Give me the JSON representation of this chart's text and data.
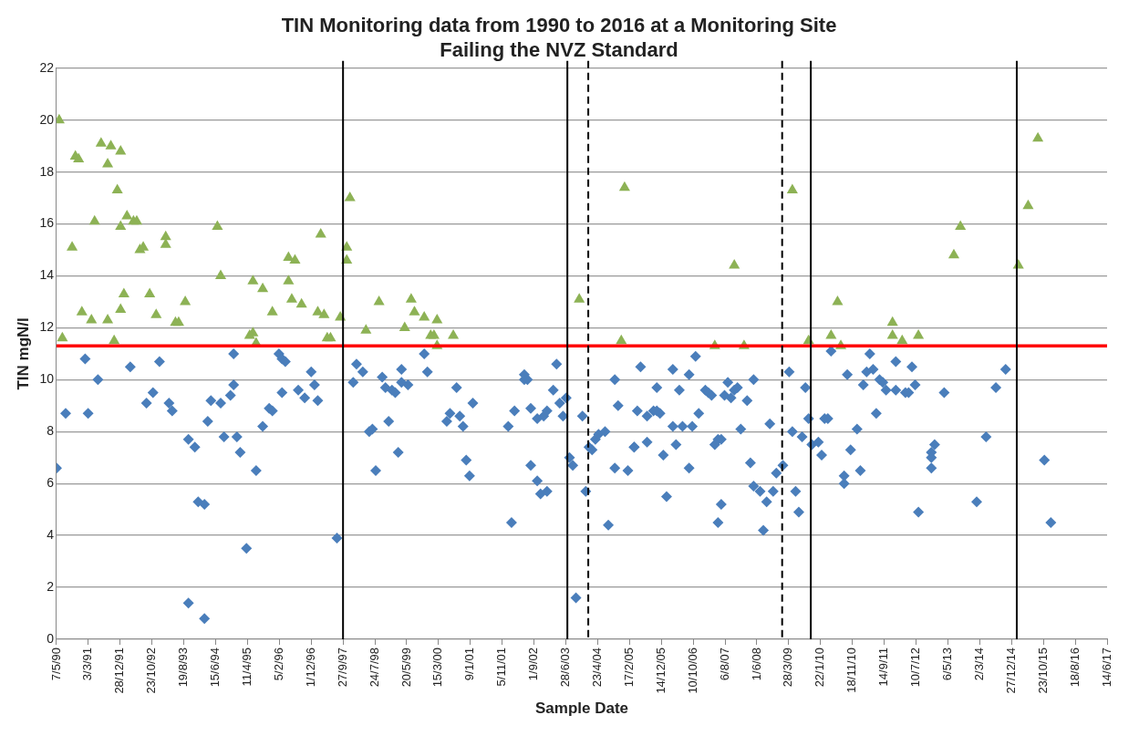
{
  "chart_data": {
    "type": "scatter",
    "title": "TIN Monitoring data from 1990 to 2016 at a Monitoring Site\nFailing the NVZ Standard",
    "xlabel": "Sample Date",
    "ylabel": "TIN mgN/l",
    "grid": "y",
    "legend": false,
    "xlim": [
      "1990-05-07",
      "2017-06-14"
    ],
    "xticks": [
      {
        "value": "1990-05-07",
        "label": "7/5/90"
      },
      {
        "value": "1991-03-03",
        "label": "3/3/91"
      },
      {
        "value": "1991-12-28",
        "label": "28/12/91"
      },
      {
        "value": "1992-10-23",
        "label": "23/10/92"
      },
      {
        "value": "1993-08-19",
        "label": "19/8/93"
      },
      {
        "value": "1994-06-15",
        "label": "15/6/94"
      },
      {
        "value": "1995-04-11",
        "label": "11/4/95"
      },
      {
        "value": "1996-02-05",
        "label": "5/2/96"
      },
      {
        "value": "1996-12-01",
        "label": "1/12/96"
      },
      {
        "value": "1997-09-27",
        "label": "27/9/97"
      },
      {
        "value": "1998-07-24",
        "label": "24/7/98"
      },
      {
        "value": "1999-05-20",
        "label": "20/5/99"
      },
      {
        "value": "2000-03-15",
        "label": "15/3/00"
      },
      {
        "value": "2001-01-09",
        "label": "9/1/01"
      },
      {
        "value": "2001-11-05",
        "label": "5/11/01"
      },
      {
        "value": "2002-09-01",
        "label": "1/9/02"
      },
      {
        "value": "2003-06-28",
        "label": "28/6/03"
      },
      {
        "value": "2004-04-23",
        "label": "23/4/04"
      },
      {
        "value": "2005-02-17",
        "label": "17/2/05"
      },
      {
        "value": "2005-12-14",
        "label": "14/12/05"
      },
      {
        "value": "2006-10-10",
        "label": "10/10/06"
      },
      {
        "value": "2007-08-06",
        "label": "6/8/07"
      },
      {
        "value": "2008-06-01",
        "label": "1/6/08"
      },
      {
        "value": "2009-03-28",
        "label": "28/3/09"
      },
      {
        "value": "2010-01-22",
        "label": "22/1/10"
      },
      {
        "value": "2010-11-18",
        "label": "18/11/10"
      },
      {
        "value": "2011-09-14",
        "label": "14/9/11"
      },
      {
        "value": "2012-07-10",
        "label": "10/7/12"
      },
      {
        "value": "2013-05-06",
        "label": "6/5/13"
      },
      {
        "value": "2014-03-02",
        "label": "2/3/14"
      },
      {
        "value": "2014-12-27",
        "label": "27/12/14"
      },
      {
        "value": "2015-10-23",
        "label": "23/10/15"
      },
      {
        "value": "2016-08-18",
        "label": "18/8/16"
      },
      {
        "value": "2017-06-14",
        "label": "14/6/17"
      }
    ],
    "ylim": [
      0,
      22
    ],
    "yticks": [
      0,
      2,
      4,
      6,
      8,
      10,
      12,
      14,
      16,
      18,
      20,
      22
    ],
    "ref_lines": [
      {
        "axis": "y",
        "value": 11.3,
        "color": "#ff0000",
        "line_style": "solid"
      },
      {
        "axis": "x",
        "value": "1997-09-27",
        "color": "#000000",
        "line_style": "solid"
      },
      {
        "axis": "x",
        "value": "2003-07-12",
        "color": "#000000",
        "line_style": "solid"
      },
      {
        "axis": "x",
        "value": "2004-01-25",
        "color": "#000000",
        "line_style": "dashed"
      },
      {
        "axis": "x",
        "value": "2009-01-25",
        "color": "#000000",
        "line_style": "dashed"
      },
      {
        "axis": "x",
        "value": "2009-10-22",
        "color": "#000000",
        "line_style": "solid"
      },
      {
        "axis": "x",
        "value": "2015-02-14",
        "color": "#000000",
        "line_style": "solid"
      }
    ],
    "series": [
      {
        "type": "scatter",
        "marker": "triangle",
        "color": "#8db255",
        "x": [
          "1990-06",
          "1990-07",
          "1990-10",
          "1990-11",
          "1990-12",
          "1991-01",
          "1991-04",
          "1991-05",
          "1991-07",
          "1991-09",
          "1991-09",
          "1991-10",
          "1991-11",
          "1991-12",
          "1992-01",
          "1992-01",
          "1992-01",
          "1992-02",
          "1992-03",
          "1992-05",
          "1992-06",
          "1992-07",
          "1992-08",
          "1992-10",
          "1992-12",
          "1993-03",
          "1993-03",
          "1993-06",
          "1993-07",
          "1993-09",
          "1994-07",
          "1994-08",
          "1995-05",
          "1995-06",
          "1995-07",
          "1995-06",
          "1995-09",
          "1995-12",
          "1996-05",
          "1996-06",
          "1996-05",
          "1996-07",
          "1996-09",
          "1997-03",
          "1997-02",
          "1997-04",
          "1997-05",
          "1997-06",
          "1997-09",
          "1997-11",
          "1997-11",
          "1997-12",
          "1998-05",
          "1998-09",
          "1999-05",
          "1999-07",
          "1999-08",
          "1999-11",
          "2000-03",
          "2000-01",
          "2000-02",
          "2000-03",
          "2000-08",
          "2003-11",
          "2004-12",
          "2005-01",
          "2007-05",
          "2007-11",
          "2008-02",
          "2009-05",
          "2009-10",
          "2010-05",
          "2010-07",
          "2010-08",
          "2011-12",
          "2011-12",
          "2012-03",
          "2012-08",
          "2013-07",
          "2013-09",
          "2015-03",
          "2015-06",
          "2015-09"
        ],
        "values": [
          20.0,
          11.6,
          15.1,
          18.6,
          18.5,
          12.6,
          12.3,
          16.1,
          19.1,
          18.3,
          12.3,
          19.0,
          11.5,
          17.3,
          18.8,
          15.9,
          12.7,
          13.3,
          16.3,
          16.1,
          16.1,
          15.0,
          15.1,
          13.3,
          12.5,
          15.2,
          15.5,
          12.2,
          12.2,
          13.0,
          15.9,
          14.0,
          11.7,
          11.8,
          11.4,
          13.8,
          13.5,
          12.6,
          13.8,
          13.1,
          14.7,
          14.6,
          12.9,
          15.6,
          12.6,
          12.5,
          11.6,
          11.6,
          12.4,
          15.1,
          14.6,
          17.0,
          11.9,
          13.0,
          12.0,
          13.1,
          12.6,
          12.4,
          12.3,
          11.7,
          11.7,
          11.3,
          11.7,
          13.1,
          11.5,
          17.4,
          11.3,
          14.4,
          11.3,
          17.3,
          11.5,
          11.7,
          13.0,
          11.3,
          12.2,
          11.7,
          11.5,
          11.7,
          14.8,
          15.9,
          14.4,
          16.7,
          19.3
        ]
      },
      {
        "type": "scatter",
        "marker": "diamond",
        "color": "#4a7ebb",
        "x": [
          "1990-05-07",
          "1990-08",
          "1991-02",
          "1991-03",
          "1991-06",
          "1992-04",
          "1992-09",
          "1992-11",
          "1993-01",
          "1993-04",
          "1993-05",
          "1993-10",
          "1993-10",
          "1993-12",
          "1994-01",
          "1994-03",
          "1994-03",
          "1994-04",
          "1994-05",
          "1994-08",
          "1994-09",
          "1994-11",
          "1994-12",
          "1994-12",
          "1995-01",
          "1995-02",
          "1995-04",
          "1995-07",
          "1995-09",
          "1995-11",
          "1995-12",
          "1996-02",
          "1996-03",
          "1996-03",
          "1996-04",
          "1996-08",
          "1996-10",
          "1996-12",
          "1997-01",
          "1997-02",
          "1997-08",
          "1998-01",
          "1998-02",
          "1998-04",
          "1998-06",
          "1998-07",
          "1998-08",
          "1998-10",
          "1998-11",
          "1998-12",
          "1999-01",
          "1999-02",
          "1999-03",
          "1999-04",
          "1999-04",
          "1999-06",
          "1999-11",
          "1999-12",
          "2000-06",
          "2000-07",
          "2000-09",
          "2000-10",
          "2000-11",
          "2000-12",
          "2001-01",
          "2001-02",
          "2002-01",
          "2002-02",
          "2002-03",
          "2002-06",
          "2002-06",
          "2002-07",
          "2002-08",
          "2002-08",
          "2002-10",
          "2002-10",
          "2002-11",
          "2002-12",
          "2003-01",
          "2003-01",
          "2003-03",
          "2003-04",
          "2003-05",
          "2003-06",
          "2003-07",
          "2003-08",
          "2003-09",
          "2003-10",
          "2003-12",
          "2004-01",
          "2004-02",
          "2004-03",
          "2004-04",
          "2004-05",
          "2004-07",
          "2004-08",
          "2004-10",
          "2004-10",
          "2004-11",
          "2005-02",
          "2005-04",
          "2005-04",
          "2005-05",
          "2005-06",
          "2005-08",
          "2005-08",
          "2005-10",
          "2005-11",
          "2005-11",
          "2005-12",
          "2006-01",
          "2006-02",
          "2006-04",
          "2006-04",
          "2006-05",
          "2006-06",
          "2006-07",
          "2006-09",
          "2006-09",
          "2006-10",
          "2006-11",
          "2006-12",
          "2007-02",
          "2007-03",
          "2007-04",
          "2007-05",
          "2007-06",
          "2007-06",
          "2007-07",
          "2007-07",
          "2007-08",
          "2007-09",
          "2007-10",
          "2007-11",
          "2007-12",
          "2008-01",
          "2008-03",
          "2008-04",
          "2008-05",
          "2008-05",
          "2008-07",
          "2008-08",
          "2008-09",
          "2008-10",
          "2008-11",
          "2008-12",
          "2009-02",
          "2009-04",
          "2009-05",
          "2009-06",
          "2009-07",
          "2009-08",
          "2009-09",
          "2009-10",
          "2009-11",
          "2010-01",
          "2010-02",
          "2010-03",
          "2010-04",
          "2010-05",
          "2010-09",
          "2010-09",
          "2010-10",
          "2010-11",
          "2011-01",
          "2011-02",
          "2011-03",
          "2011-04",
          "2011-05",
          "2011-06",
          "2011-07",
          "2011-08",
          "2011-09",
          "2011-10",
          "2012-01",
          "2012-01",
          "2012-04",
          "2012-05",
          "2012-06",
          "2012-07",
          "2012-08",
          "2012-12",
          "2012-12",
          "2012-12",
          "2013-01",
          "2013-04",
          "2014-02",
          "2014-05",
          "2014-08",
          "2014-11",
          "2015-11",
          "2016-01"
        ],
        "values": [
          6.6,
          8.7,
          10.8,
          8.7,
          10.0,
          10.5,
          9.1,
          9.5,
          10.7,
          9.1,
          8.8,
          7.7,
          1.4,
          7.4,
          5.3,
          5.2,
          0.8,
          8.4,
          9.2,
          9.1,
          7.8,
          9.4,
          11.0,
          9.8,
          7.8,
          7.2,
          3.5,
          6.5,
          8.2,
          8.9,
          8.8,
          11.0,
          10.8,
          9.5,
          10.7,
          9.6,
          9.3,
          10.3,
          9.8,
          9.2,
          3.9,
          9.9,
          10.6,
          10.3,
          8.0,
          8.1,
          6.5,
          10.1,
          9.7,
          8.4,
          9.6,
          9.5,
          7.2,
          10.4,
          9.9,
          9.8,
          11.0,
          10.3,
          8.4,
          8.7,
          9.7,
          8.6,
          8.2,
          6.9,
          6.3,
          9.1,
          8.2,
          4.5,
          8.8,
          10.0,
          10.2,
          10.0,
          8.9,
          6.7,
          6.1,
          8.5,
          5.6,
          8.6,
          5.7,
          8.8,
          9.6,
          10.6,
          9.1,
          8.6,
          9.3,
          7.0,
          6.7,
          1.6,
          8.6,
          5.7,
          7.4,
          7.3,
          7.7,
          7.9,
          8.0,
          4.4,
          10.0,
          6.6,
          9.0,
          6.5,
          7.4,
          7.4,
          8.8,
          10.5,
          7.6,
          8.6,
          8.8,
          8.8,
          9.7,
          8.7,
          7.1,
          5.5,
          8.2,
          10.4,
          7.5,
          9.6,
          8.2,
          6.6,
          10.2,
          8.2,
          10.9,
          8.7,
          9.6,
          9.5,
          9.4,
          7.5,
          7.7,
          4.5,
          7.7,
          5.2,
          9.4,
          9.9,
          9.3,
          9.6,
          9.7,
          8.1,
          9.2,
          6.8,
          10.0,
          5.9,
          5.7,
          4.2,
          5.3,
          8.3,
          5.7,
          6.4,
          6.7,
          10.3,
          8.0,
          5.7,
          4.9,
          7.8,
          9.7,
          8.5,
          7.5,
          7.6,
          7.1,
          8.5,
          8.5,
          11.1,
          6.3,
          6.0,
          10.2,
          7.3,
          8.1,
          6.5,
          9.8,
          10.3,
          11.0,
          10.4,
          8.7,
          10.0,
          9.9,
          9.6,
          9.6,
          10.7,
          9.5,
          9.5,
          10.5,
          9.8,
          4.9,
          6.6,
          7.0,
          7.2,
          7.5,
          9.5,
          5.3,
          7.8,
          9.7,
          10.4,
          6.9,
          4.5
        ]
      }
    ]
  }
}
